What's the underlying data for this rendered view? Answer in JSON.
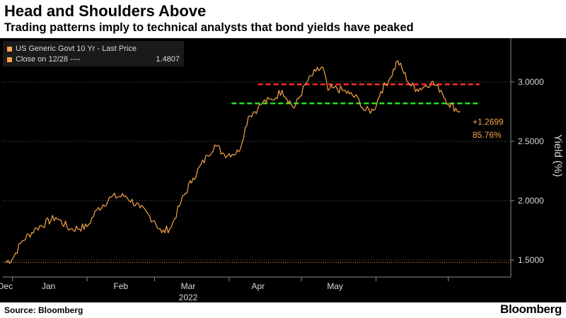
{
  "title": "Head and Shoulders Above",
  "subtitle": "Trading patterns imply to technical analysts that bond yields have peaked",
  "legend": {
    "items": [
      {
        "label": "US Generic Govt 10 Yr - Last Price",
        "value": "",
        "color": "#f7a54a"
      },
      {
        "label": "Close on 12/28 ----",
        "value": "1.4807",
        "color": "#f7a54a"
      }
    ]
  },
  "annotation": {
    "change": "+1.2699",
    "pct": "85.76%"
  },
  "source": "Source: Bloomberg",
  "brand": "Bloomberg",
  "chart_data": {
    "type": "line",
    "title": "Head and Shoulders Above",
    "subtitle": "Trading patterns imply to technical analysts that bond yields have peaked",
    "ylabel": "Yield (%)",
    "xlabel": "",
    "ylim": [
      1.45,
      3.35
    ],
    "y_ticks": [
      1.5,
      2.0,
      2.5,
      3.0
    ],
    "y_tick_labels": [
      "1.5000",
      "2.0000",
      "2.5000",
      "3.0000"
    ],
    "x_ticks": [
      "Dec",
      "Jan",
      "Feb",
      "Mar",
      "Apr",
      "May"
    ],
    "year_label": "2022",
    "grid": true,
    "legend_position": "top-left",
    "series": [
      {
        "name": "US Generic Govt 10 Yr - Last Price",
        "color": "#f7a54a",
        "points": [
          [
            "2021-12-28",
            1.48
          ],
          [
            "2021-12-31",
            1.51
          ],
          [
            "2022-01-04",
            1.66
          ],
          [
            "2022-01-10",
            1.77
          ],
          [
            "2022-01-18",
            1.86
          ],
          [
            "2022-01-24",
            1.76
          ],
          [
            "2022-01-31",
            1.78
          ],
          [
            "2022-02-04",
            1.92
          ],
          [
            "2022-02-10",
            2.03
          ],
          [
            "2022-02-16",
            2.04
          ],
          [
            "2022-02-22",
            1.94
          ],
          [
            "2022-02-28",
            1.83
          ],
          [
            "2022-03-03",
            1.73
          ],
          [
            "2022-03-07",
            1.78
          ],
          [
            "2022-03-11",
            1.99
          ],
          [
            "2022-03-16",
            2.19
          ],
          [
            "2022-03-22",
            2.38
          ],
          [
            "2022-03-25",
            2.47
          ],
          [
            "2022-03-29",
            2.39
          ],
          [
            "2022-04-04",
            2.41
          ],
          [
            "2022-04-08",
            2.71
          ],
          [
            "2022-04-12",
            2.78
          ],
          [
            "2022-04-14",
            2.83
          ],
          [
            "2022-04-18",
            2.85
          ],
          [
            "2022-04-22",
            2.93
          ],
          [
            "2022-04-27",
            2.78
          ],
          [
            "2022-05-02",
            2.99
          ],
          [
            "2022-05-06",
            3.09
          ],
          [
            "2022-05-09",
            3.12
          ],
          [
            "2022-05-11",
            2.93
          ],
          [
            "2022-05-13",
            2.95
          ],
          [
            "2022-05-17",
            2.93
          ],
          [
            "2022-05-20",
            2.9
          ],
          [
            "2022-05-24",
            2.85
          ],
          [
            "2022-05-26",
            2.76
          ],
          [
            "2022-05-30",
            2.76
          ],
          [
            "2022-06-02",
            2.92
          ],
          [
            "2022-06-06",
            3.04
          ],
          [
            "2022-06-09",
            3.18
          ],
          [
            "2022-06-14",
            2.98
          ],
          [
            "2022-06-17",
            2.94
          ],
          [
            "2022-06-20",
            2.96
          ],
          [
            "2022-06-23",
            3.0
          ],
          [
            "2022-06-27",
            2.93
          ],
          [
            "2022-06-30",
            2.82
          ],
          [
            "2022-07-05",
            2.75
          ]
        ]
      }
    ],
    "reference_lines": [
      {
        "label": "Close on 12/28",
        "value": 1.4807,
        "style": "dotted",
        "color": "#f7a54a"
      },
      {
        "value": 2.98,
        "style": "dashed",
        "color": "#ff2b2b",
        "x_start": "2022-04-12",
        "x_end": "2022-07-13"
      },
      {
        "value": 2.82,
        "style": "dashed",
        "color": "#22e022",
        "x_start": "2022-04-01",
        "x_end": "2022-07-13"
      }
    ],
    "annotations": [
      "+1.2699",
      "85.76%"
    ]
  }
}
